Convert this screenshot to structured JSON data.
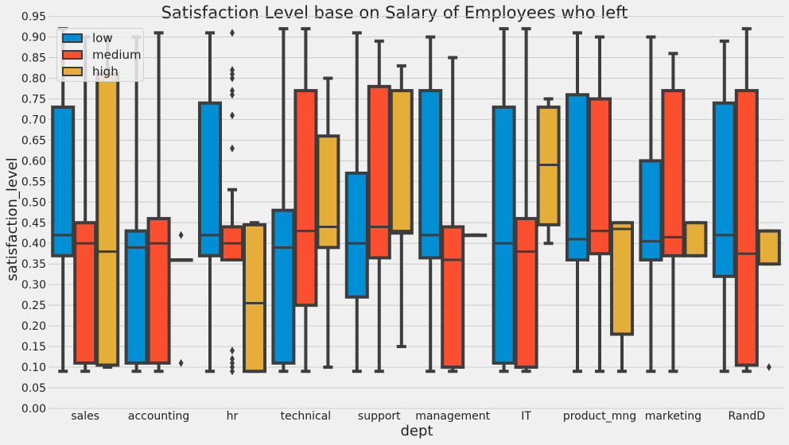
{
  "chart_data": {
    "type": "box",
    "title": "Satisfaction Level base on Salary of Employees who left",
    "xlabel": "dept",
    "ylabel": "satisfaction_level",
    "ylim": [
      0,
      0.98
    ],
    "yticks": [
      "0.00",
      "0.05",
      "0.10",
      "0.15",
      "0.20",
      "0.25",
      "0.30",
      "0.35",
      "0.40",
      "0.45",
      "0.50",
      "0.55",
      "0.60",
      "0.65",
      "0.70",
      "0.75",
      "0.80",
      "0.85",
      "0.90",
      "0.95"
    ],
    "grid": true,
    "legend_position": "top-left",
    "categories": [
      "sales",
      "accounting",
      "hr",
      "technical",
      "support",
      "management",
      "IT",
      "product_mng",
      "marketing",
      "RandD"
    ],
    "series": [
      {
        "name": "low",
        "color": "#008fd5",
        "boxes": [
          {
            "whislo": 0.09,
            "q1": 0.37,
            "med": 0.42,
            "q3": 0.73,
            "whishi": 0.92,
            "fliers": []
          },
          {
            "whislo": 0.09,
            "q1": 0.11,
            "med": 0.39,
            "q3": 0.43,
            "whishi": 0.9,
            "fliers": []
          },
          {
            "whislo": 0.09,
            "q1": 0.37,
            "med": 0.42,
            "q3": 0.74,
            "whishi": 0.91,
            "fliers": []
          },
          {
            "whislo": 0.09,
            "q1": 0.11,
            "med": 0.39,
            "q3": 0.48,
            "whishi": 0.92,
            "fliers": []
          },
          {
            "whislo": 0.09,
            "q1": 0.27,
            "med": 0.4,
            "q3": 0.57,
            "whishi": 0.91,
            "fliers": []
          },
          {
            "whislo": 0.09,
            "q1": 0.365,
            "med": 0.42,
            "q3": 0.77,
            "whishi": 0.9,
            "fliers": []
          },
          {
            "whislo": 0.09,
            "q1": 0.11,
            "med": 0.4,
            "q3": 0.73,
            "whishi": 0.92,
            "fliers": []
          },
          {
            "whislo": 0.09,
            "q1": 0.36,
            "med": 0.41,
            "q3": 0.76,
            "whishi": 0.91,
            "fliers": []
          },
          {
            "whislo": 0.09,
            "q1": 0.36,
            "med": 0.405,
            "q3": 0.6,
            "whishi": 0.9,
            "fliers": []
          },
          {
            "whislo": 0.09,
            "q1": 0.32,
            "med": 0.42,
            "q3": 0.74,
            "whishi": 0.89,
            "fliers": []
          }
        ]
      },
      {
        "name": "medium",
        "color": "#fc4f30",
        "boxes": [
          {
            "whislo": 0.09,
            "q1": 0.11,
            "med": 0.4,
            "q3": 0.45,
            "whishi": 0.9,
            "fliers": []
          },
          {
            "whislo": 0.09,
            "q1": 0.11,
            "med": 0.4,
            "q3": 0.46,
            "whishi": 0.91,
            "fliers": []
          },
          {
            "whislo": 0.36,
            "q1": 0.36,
            "med": 0.4,
            "q3": 0.44,
            "whishi": 0.53,
            "fliers": [
              0.91,
              0.82,
              0.81,
              0.8,
              0.77,
              0.76,
              0.71,
              0.63,
              0.14,
              0.12,
              0.11,
              0.1,
              0.09
            ]
          },
          {
            "whislo": 0.09,
            "q1": 0.25,
            "med": 0.43,
            "q3": 0.77,
            "whishi": 0.92,
            "fliers": []
          },
          {
            "whislo": 0.09,
            "q1": 0.365,
            "med": 0.44,
            "q3": 0.78,
            "whishi": 0.89,
            "fliers": []
          },
          {
            "whislo": 0.09,
            "q1": 0.1,
            "med": 0.36,
            "q3": 0.44,
            "whishi": 0.85,
            "fliers": []
          },
          {
            "whislo": 0.09,
            "q1": 0.1,
            "med": 0.38,
            "q3": 0.46,
            "whishi": 0.92,
            "fliers": []
          },
          {
            "whislo": 0.09,
            "q1": 0.375,
            "med": 0.43,
            "q3": 0.75,
            "whishi": 0.9,
            "fliers": []
          },
          {
            "whislo": 0.09,
            "q1": 0.37,
            "med": 0.415,
            "q3": 0.77,
            "whishi": 0.86,
            "fliers": []
          },
          {
            "whislo": 0.09,
            "q1": 0.105,
            "med": 0.375,
            "q3": 0.77,
            "whishi": 0.92,
            "fliers": []
          }
        ]
      },
      {
        "name": "high",
        "color": "#e5ae38",
        "boxes": [
          {
            "whislo": 0.1,
            "q1": 0.105,
            "med": 0.38,
            "q3": 0.81,
            "whishi": 0.9,
            "fliers": []
          },
          {
            "whislo": 0.36,
            "q1": 0.36,
            "med": 0.36,
            "q3": 0.36,
            "whishi": 0.36,
            "fliers": [
              0.42,
              0.11
            ]
          },
          {
            "whislo": 0.09,
            "q1": 0.09,
            "med": 0.255,
            "q3": 0.445,
            "whishi": 0.45,
            "fliers": []
          },
          {
            "whislo": 0.1,
            "q1": 0.39,
            "med": 0.44,
            "q3": 0.66,
            "whishi": 0.8,
            "fliers": []
          },
          {
            "whislo": 0.15,
            "q1": 0.425,
            "med": 0.43,
            "q3": 0.77,
            "whishi": 0.83,
            "fliers": []
          },
          {
            "whislo": 0.42,
            "q1": 0.42,
            "med": 0.42,
            "q3": 0.42,
            "whishi": 0.42,
            "fliers": []
          },
          {
            "whislo": 0.4,
            "q1": 0.445,
            "med": 0.59,
            "q3": 0.73,
            "whishi": 0.75,
            "fliers": []
          },
          {
            "whislo": 0.09,
            "q1": 0.18,
            "med": 0.435,
            "q3": 0.45,
            "whishi": 0.45,
            "fliers": []
          },
          {
            "whislo": 0.37,
            "q1": 0.37,
            "med": 0.37,
            "q3": 0.45,
            "whishi": 0.45,
            "fliers": []
          },
          {
            "whislo": 0.35,
            "q1": 0.35,
            "med": 0.35,
            "q3": 0.43,
            "whishi": 0.43,
            "fliers": [
              0.1
            ]
          }
        ]
      }
    ]
  }
}
